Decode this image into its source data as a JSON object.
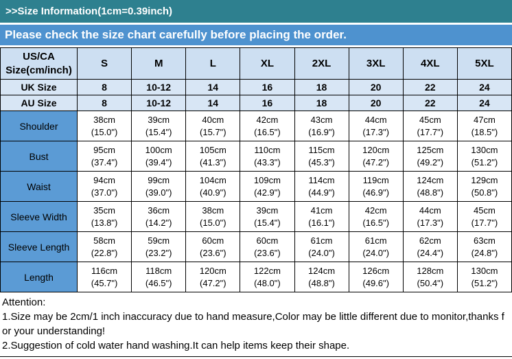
{
  "header": {
    "size_info": ">>Size Information(1cm=0.39inch)",
    "notice": "Please check the size chart carefully before placing the order."
  },
  "table": {
    "corner": {
      "line1": "US/CA",
      "line2": "Size(cm/inch)"
    },
    "sizes": [
      "S",
      "M",
      "L",
      "XL",
      "2XL",
      "3XL",
      "4XL",
      "5XL"
    ],
    "region_rows": [
      {
        "label": "UK Size",
        "values": [
          "8",
          "10-12",
          "14",
          "16",
          "18",
          "20",
          "22",
          "24"
        ]
      },
      {
        "label": "AU Size",
        "values": [
          "8",
          "10-12",
          "14",
          "16",
          "18",
          "20",
          "22",
          "24"
        ]
      }
    ],
    "measurement_rows": [
      {
        "label": "Shoulder",
        "values": [
          {
            "cm": "38cm",
            "inch": "(15.0\")"
          },
          {
            "cm": "39cm",
            "inch": "(15.4\")"
          },
          {
            "cm": "40cm",
            "inch": "(15.7\")"
          },
          {
            "cm": "42cm",
            "inch": "(16.5\")"
          },
          {
            "cm": "43cm",
            "inch": "(16.9\")"
          },
          {
            "cm": "44cm",
            "inch": "(17.3\")"
          },
          {
            "cm": "45cm",
            "inch": "(17.7\")"
          },
          {
            "cm": "47cm",
            "inch": "(18.5\")"
          }
        ]
      },
      {
        "label": "Bust",
        "values": [
          {
            "cm": "95cm",
            "inch": "(37.4\")"
          },
          {
            "cm": "100cm",
            "inch": "(39.4\")"
          },
          {
            "cm": "105cm",
            "inch": "(41.3\")"
          },
          {
            "cm": "110cm",
            "inch": "(43.3\")"
          },
          {
            "cm": "115cm",
            "inch": "(45.3\")"
          },
          {
            "cm": "120cm",
            "inch": "(47.2\")"
          },
          {
            "cm": "125cm",
            "inch": "(49.2\")"
          },
          {
            "cm": "130cm",
            "inch": "(51.2\")"
          }
        ]
      },
      {
        "label": "Waist",
        "values": [
          {
            "cm": "94cm",
            "inch": "(37.0\")"
          },
          {
            "cm": "99cm",
            "inch": "(39.0\")"
          },
          {
            "cm": "104cm",
            "inch": "(40.9\")"
          },
          {
            "cm": "109cm",
            "inch": "(42.9\")"
          },
          {
            "cm": "114cm",
            "inch": "(44.9\")"
          },
          {
            "cm": "119cm",
            "inch": "(46.9\")"
          },
          {
            "cm": "124cm",
            "inch": "(48.8\")"
          },
          {
            "cm": "129cm",
            "inch": "(50.8\")"
          }
        ]
      },
      {
        "label": "Sleeve Width",
        "values": [
          {
            "cm": "35cm",
            "inch": "(13.8\")"
          },
          {
            "cm": "36cm",
            "inch": "(14.2\")"
          },
          {
            "cm": "38cm",
            "inch": "(15.0\")"
          },
          {
            "cm": "39cm",
            "inch": "(15.4\")"
          },
          {
            "cm": "41cm",
            "inch": "(16.1\")"
          },
          {
            "cm": "42cm",
            "inch": "(16.5\")"
          },
          {
            "cm": "44cm",
            "inch": "(17.3\")"
          },
          {
            "cm": "45cm",
            "inch": "(17.7\")"
          }
        ]
      },
      {
        "label": "Sleeve Length",
        "values": [
          {
            "cm": "58cm",
            "inch": "(22.8\")"
          },
          {
            "cm": "59cm",
            "inch": "(23.2\")"
          },
          {
            "cm": "60cm",
            "inch": "(23.6\")"
          },
          {
            "cm": "60cm",
            "inch": "(23.6\")"
          },
          {
            "cm": "61cm",
            "inch": "(24.0\")"
          },
          {
            "cm": "61cm",
            "inch": "(24.0\")"
          },
          {
            "cm": "62cm",
            "inch": "(24.4\")"
          },
          {
            "cm": "63cm",
            "inch": "(24.8\")"
          }
        ]
      },
      {
        "label": "Length",
        "values": [
          {
            "cm": "116cm",
            "inch": "(45.7\")"
          },
          {
            "cm": "118cm",
            "inch": "(46.5\")"
          },
          {
            "cm": "120cm",
            "inch": "(47.2\")"
          },
          {
            "cm": "122cm",
            "inch": "(48.0\")"
          },
          {
            "cm": "124cm",
            "inch": "(48.8\")"
          },
          {
            "cm": "126cm",
            "inch": "(49.6\")"
          },
          {
            "cm": "128cm",
            "inch": "(50.4\")"
          },
          {
            "cm": "130cm",
            "inch": "(51.2\")"
          }
        ]
      }
    ]
  },
  "attention": {
    "title": "Attention:",
    "notes": [
      "1.Size may be 2cm/1 inch inaccuracy due to hand measure,Color may be little different due to monitor,thanks for your understanding!",
      "2.Suggestion of cold water hand washing.It can help items keep their shape."
    ]
  },
  "colors": {
    "teal_header": "#2E808F",
    "blue_notice": "#4E92CF",
    "light_blue_header": "#CDDFF2",
    "region_row_bg": "#D8E6F5",
    "label_blue": "#5B9BD5"
  }
}
